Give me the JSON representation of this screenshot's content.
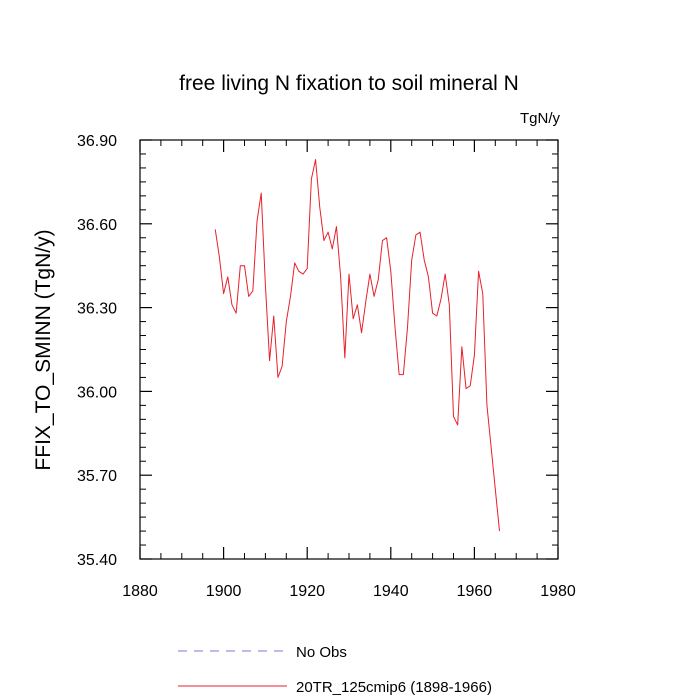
{
  "chart_data": {
    "type": "line",
    "title": "free living N fixation to soil mineral N",
    "units": "TgN/y",
    "xlabel": "",
    "ylabel": "FFIX_TO_SMINN  (TgN/y)",
    "xlim": [
      1880,
      1980
    ],
    "ylim": [
      35.4,
      36.9
    ],
    "xticks": [
      1880,
      1900,
      1920,
      1940,
      1960,
      1980
    ],
    "xtick_labels": [
      "1880",
      "1900",
      "1920",
      "1940",
      "1960",
      "1980"
    ],
    "yticks": [
      35.4,
      35.7,
      36.0,
      36.3,
      36.6,
      36.9
    ],
    "ytick_labels": [
      "35.40",
      "35.70",
      "36.00",
      "36.30",
      "36.60",
      "36.90"
    ],
    "x_minor_step": 5,
    "y_minor_step": 0.05,
    "series": [
      {
        "name": "No Obs",
        "color": "#7b7bd6",
        "style": "dashed",
        "x": [],
        "values": []
      },
      {
        "name": "20TR_125cmip6 (1898-1966)",
        "color": "#e8202a",
        "style": "solid",
        "x": [
          1898,
          1899,
          1900,
          1901,
          1902,
          1903,
          1904,
          1905,
          1906,
          1907,
          1908,
          1909,
          1910,
          1911,
          1912,
          1913,
          1914,
          1915,
          1916,
          1917,
          1918,
          1919,
          1920,
          1921,
          1922,
          1923,
          1924,
          1925,
          1926,
          1927,
          1928,
          1929,
          1930,
          1931,
          1932,
          1933,
          1934,
          1935,
          1936,
          1937,
          1938,
          1939,
          1940,
          1941,
          1942,
          1943,
          1944,
          1945,
          1946,
          1947,
          1948,
          1949,
          1950,
          1951,
          1952,
          1953,
          1954,
          1955,
          1956,
          1957,
          1958,
          1959,
          1960,
          1961,
          1962,
          1963,
          1964,
          1965,
          1966
        ],
        "values": [
          36.58,
          36.48,
          36.35,
          36.41,
          36.31,
          36.28,
          36.45,
          36.45,
          36.34,
          36.36,
          36.61,
          36.71,
          36.38,
          36.11,
          36.27,
          36.05,
          36.09,
          36.25,
          36.34,
          36.46,
          36.43,
          36.42,
          36.44,
          36.76,
          36.83,
          36.66,
          36.54,
          36.57,
          36.51,
          36.59,
          36.41,
          36.12,
          36.42,
          36.26,
          36.31,
          36.21,
          36.32,
          36.42,
          36.34,
          36.4,
          36.54,
          36.55,
          36.43,
          36.23,
          36.06,
          36.06,
          36.23,
          36.47,
          36.56,
          36.57,
          36.47,
          36.41,
          36.28,
          36.27,
          36.33,
          36.42,
          36.31,
          35.91,
          35.88,
          36.16,
          36.01,
          36.02,
          36.13,
          36.43,
          36.35,
          35.95,
          35.8,
          35.65,
          35.5
        ]
      }
    ]
  }
}
